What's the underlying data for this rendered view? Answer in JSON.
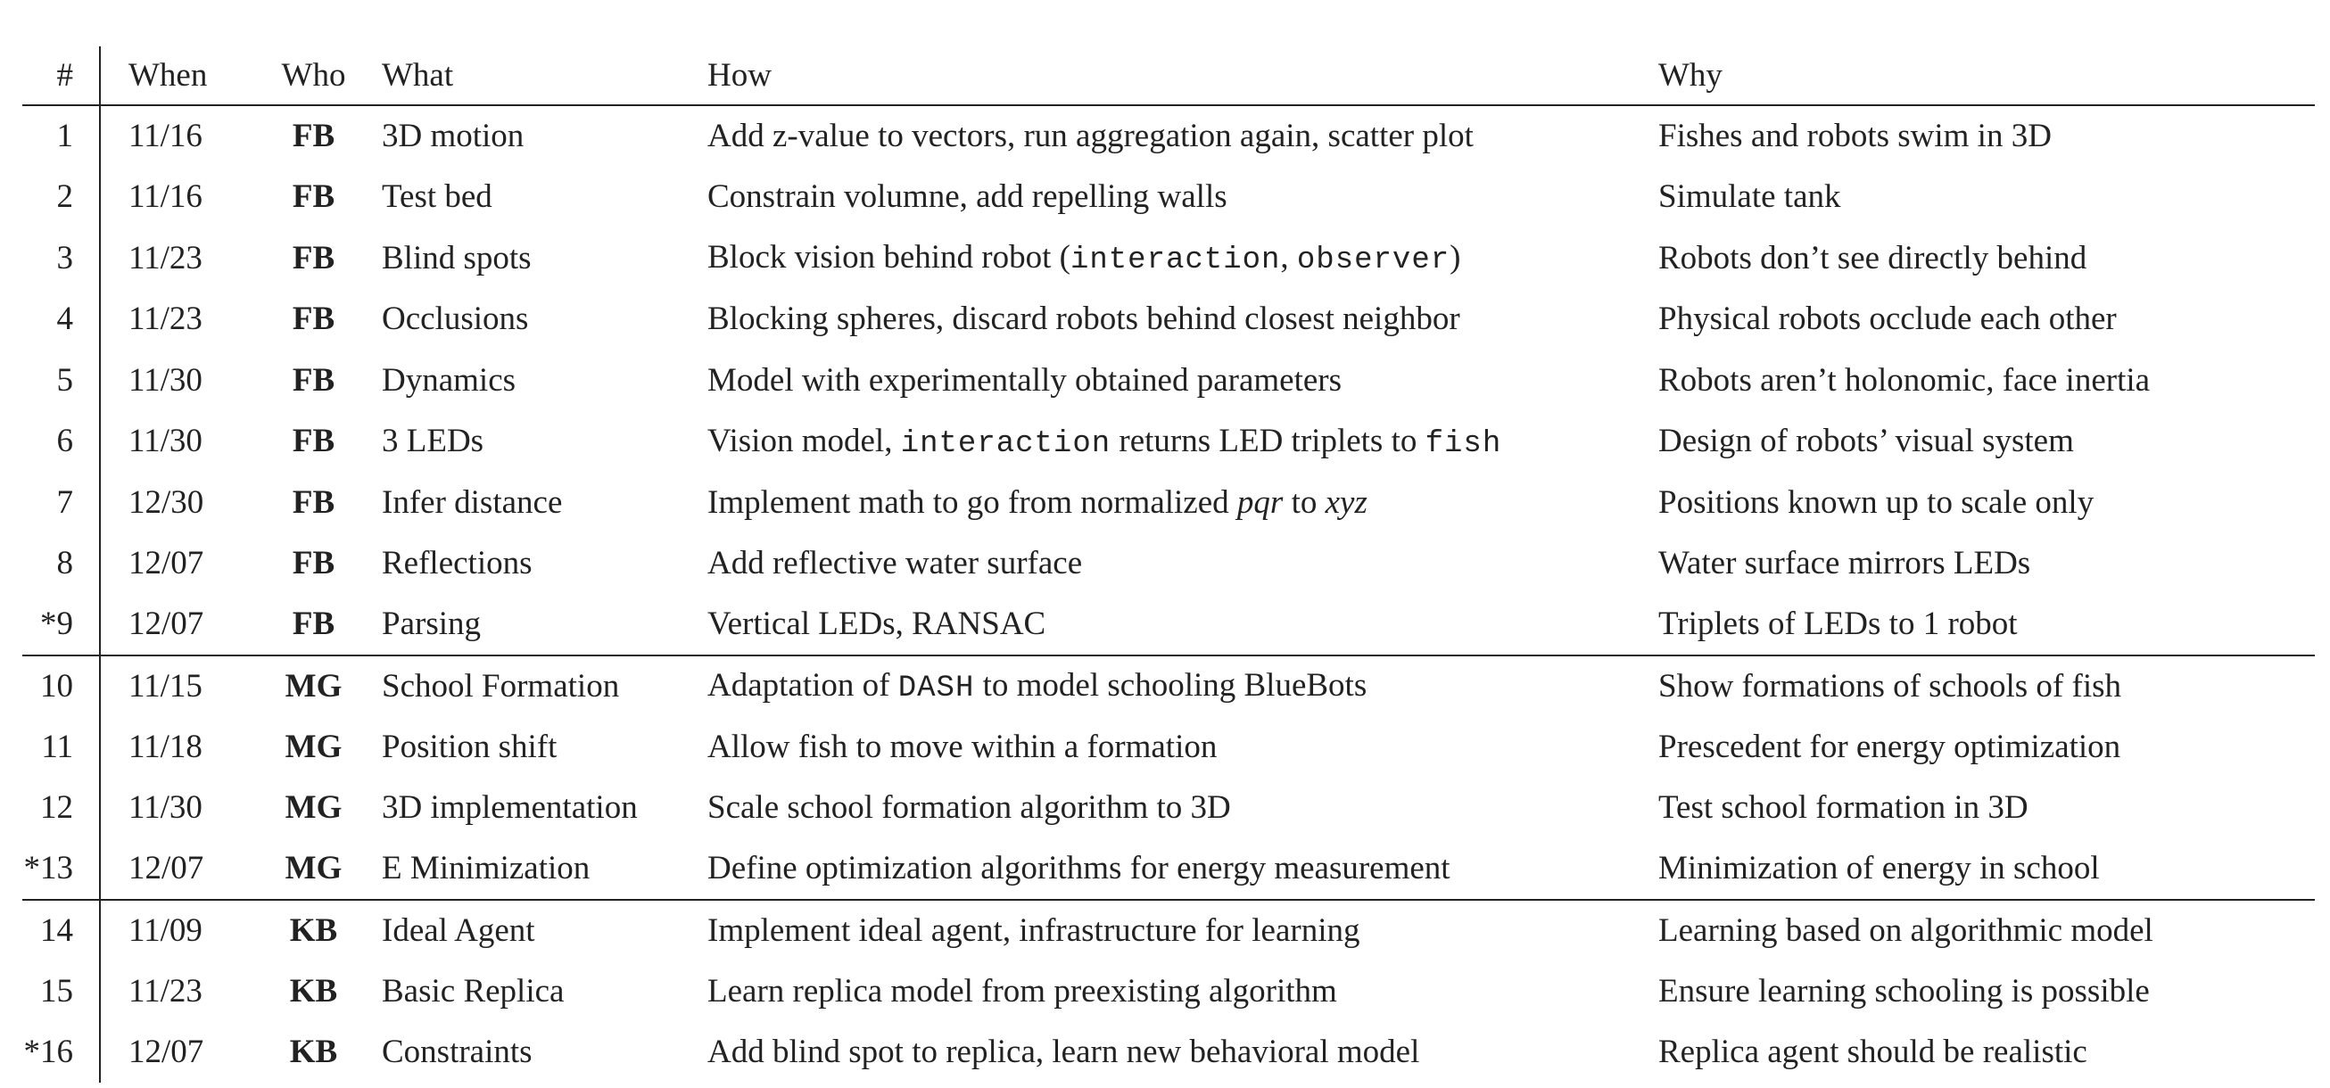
{
  "headers": {
    "num": "#",
    "when": "When",
    "who": "Who",
    "what": "What",
    "how": "How",
    "why": "Why"
  },
  "rows": [
    {
      "num": "1",
      "when": "11/16",
      "who": "FB",
      "what": "3D motion",
      "how": [
        {
          "t": "Add z-value to vectors, run aggregation again, scatter plot"
        }
      ],
      "why": "Fishes and robots swim in 3D"
    },
    {
      "num": "2",
      "when": "11/16",
      "who": "FB",
      "what": "Test bed",
      "how": [
        {
          "t": "Constrain volumne, add repelling walls"
        }
      ],
      "why": "Simulate tank"
    },
    {
      "num": "3",
      "when": "11/23",
      "who": "FB",
      "what": "Blind spots",
      "how": [
        {
          "t": "Block vision behind robot ("
        },
        {
          "t": "interaction",
          "s": "tt"
        },
        {
          "t": ", "
        },
        {
          "t": "observer",
          "s": "tt"
        },
        {
          "t": ")"
        }
      ],
      "why": "Robots don’t see directly behind"
    },
    {
      "num": "4",
      "when": "11/23",
      "who": "FB",
      "what": "Occlusions",
      "how": [
        {
          "t": "Blocking spheres, discard robots behind closest neighbor"
        }
      ],
      "why": "Physical robots occlude each other"
    },
    {
      "num": "5",
      "when": "11/30",
      "who": "FB",
      "what": "Dynamics",
      "how": [
        {
          "t": "Model with experimentally obtained parameters"
        }
      ],
      "why": "Robots aren’t holonomic, face inertia"
    },
    {
      "num": "6",
      "when": "11/30",
      "who": "FB",
      "what": "3 LEDs",
      "how": [
        {
          "t": "Vision model, "
        },
        {
          "t": "interaction",
          "s": "tt"
        },
        {
          "t": " returns LED triplets to "
        },
        {
          "t": "fish",
          "s": "tt"
        }
      ],
      "why": "Design of robots’ visual system"
    },
    {
      "num": "7",
      "when": "12/30",
      "who": "FB",
      "what": "Infer distance",
      "how": [
        {
          "t": "Implement math to go from normalized "
        },
        {
          "t": "pqr",
          "s": "it"
        },
        {
          "t": " to "
        },
        {
          "t": "xyz",
          "s": "it"
        }
      ],
      "why": "Positions known up to scale only"
    },
    {
      "num": "8",
      "when": "12/07",
      "who": "FB",
      "what": "Reflections",
      "how": [
        {
          "t": "Add reflective water surface"
        }
      ],
      "why": "Water surface mirrors LEDs"
    },
    {
      "num": "*9",
      "when": "12/07",
      "who": "FB",
      "what": "Parsing",
      "how": [
        {
          "t": "Vertical LEDs, RANSAC"
        }
      ],
      "why": "Triplets of LEDs to 1 robot",
      "group_end": true
    },
    {
      "num": "10",
      "when": "11/15",
      "who": "MG",
      "what": "School Formation",
      "how": [
        {
          "t": "Adaptation of "
        },
        {
          "t": "DASH",
          "s": "tt"
        },
        {
          "t": " to model schooling BlueBots"
        }
      ],
      "why": "Show formations of schools of fish"
    },
    {
      "num": "11",
      "when": "11/18",
      "who": "MG",
      "what": "Position shift",
      "how": [
        {
          "t": "Allow fish to move within a formation"
        }
      ],
      "why": "Prescedent for energy optimization"
    },
    {
      "num": "12",
      "when": "11/30",
      "who": "MG",
      "what": "3D implementation",
      "how": [
        {
          "t": "Scale school formation algorithm to 3D"
        }
      ],
      "why": "Test school formation in 3D"
    },
    {
      "num": "*13",
      "when": "12/07",
      "who": "MG",
      "what": "E Minimization",
      "how": [
        {
          "t": "Define optimization algorithms for energy measurement"
        }
      ],
      "why": "Minimization of energy in school",
      "group_end": true
    },
    {
      "num": "14",
      "when": "11/09",
      "who": "KB",
      "what": "Ideal Agent",
      "how": [
        {
          "t": "Implement ideal agent, infrastructure for learning"
        }
      ],
      "why": "Learning based on algorithmic model"
    },
    {
      "num": "15",
      "when": "11/23",
      "who": "KB",
      "what": "Basic Replica",
      "how": [
        {
          "t": "Learn replica model from preexisting algorithm"
        }
      ],
      "why": "Ensure learning schooling is possible"
    },
    {
      "num": "*16",
      "when": "12/07",
      "who": "KB",
      "what": "Constraints",
      "how": [
        {
          "t": "Add blind spot to replica, learn new behavioral model"
        }
      ],
      "why": "Replica agent should be realistic"
    }
  ]
}
